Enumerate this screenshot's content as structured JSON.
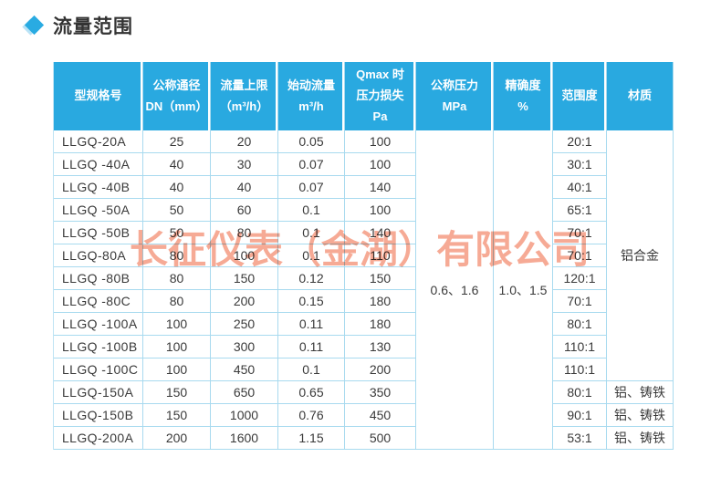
{
  "page_title": "流量范围",
  "watermark": {
    "text": "长征仪表（金湖）有限公司"
  },
  "colors": {
    "header_bg": "#29a9e0",
    "grid_line": "#a8daef",
    "watermark": "#f59b82",
    "accent_diamond": "#29abe2",
    "diamond_shadow": "#b9e3f6"
  },
  "table": {
    "headers": {
      "model": [
        "型规格号"
      ],
      "dn": [
        "公称通径",
        "DN（mm）"
      ],
      "flow_max": [
        "流量上限",
        "（m³/h）"
      ],
      "start_flow": [
        "始动流量",
        "m³/h"
      ],
      "pressure_loss": [
        "Qmax 时",
        "压力损失",
        "Pa"
      ],
      "pressure_rating": [
        "公称压力",
        "MPa"
      ],
      "accuracy": [
        "精确度",
        "%"
      ],
      "range_ratio": [
        "范围度"
      ],
      "material": [
        "材质"
      ]
    },
    "rows": [
      {
        "model": "LLGQ-20A",
        "dn": "25",
        "flow_max": "20",
        "start_flow": "0.05",
        "pressure_loss": "100",
        "range_ratio": "20:1"
      },
      {
        "model": "LLGQ -40A",
        "dn": "40",
        "flow_max": "30",
        "start_flow": "0.07",
        "pressure_loss": "100",
        "range_ratio": "30:1"
      },
      {
        "model": "LLGQ -40B",
        "dn": "40",
        "flow_max": "40",
        "start_flow": "0.07",
        "pressure_loss": "140",
        "range_ratio": "40:1"
      },
      {
        "model": "LLGQ -50A",
        "dn": "50",
        "flow_max": "60",
        "start_flow": "0.1",
        "pressure_loss": "100",
        "range_ratio": "65:1"
      },
      {
        "model": "LLGQ -50B",
        "dn": "50",
        "flow_max": "80",
        "start_flow": "0.1",
        "pressure_loss": "140",
        "range_ratio": "70:1"
      },
      {
        "model": "LLGQ-80A",
        "dn": "80",
        "flow_max": "100",
        "start_flow": "0.1",
        "pressure_loss": "110",
        "range_ratio": "70:1"
      },
      {
        "model": "LLGQ -80B",
        "dn": "80",
        "flow_max": "150",
        "start_flow": "0.12",
        "pressure_loss": "150",
        "range_ratio": "120:1"
      },
      {
        "model": "LLGQ -80C",
        "dn": "80",
        "flow_max": "200",
        "start_flow": "0.15",
        "pressure_loss": "180",
        "range_ratio": "70:1"
      },
      {
        "model": "LLGQ -100A",
        "dn": "100",
        "flow_max": "250",
        "start_flow": "0.11",
        "pressure_loss": "180",
        "range_ratio": "80:1"
      },
      {
        "model": "LLGQ -100B",
        "dn": "100",
        "flow_max": "300",
        "start_flow": "0.11",
        "pressure_loss": "130",
        "range_ratio": "110:1"
      },
      {
        "model": "LLGQ -100C",
        "dn": "100",
        "flow_max": "450",
        "start_flow": "0.1",
        "pressure_loss": "200",
        "range_ratio": "110:1"
      },
      {
        "model": "LLGQ-150A",
        "dn": "150",
        "flow_max": "650",
        "start_flow": "0.65",
        "pressure_loss": "350",
        "range_ratio": "80:1"
      },
      {
        "model": "LLGQ-150B",
        "dn": "150",
        "flow_max": "1000",
        "start_flow": "0.76",
        "pressure_loss": "450",
        "range_ratio": "90:1"
      },
      {
        "model": "LLGQ-200A",
        "dn": "200",
        "flow_max": "1600",
        "start_flow": "1.15",
        "pressure_loss": "500",
        "range_ratio": "53:1"
      }
    ],
    "merged": {
      "pressure_rating": "0.6、1.6",
      "accuracy": "1.0、1.5",
      "material_main": "铝合金",
      "material_last": [
        "铝、铸铁",
        "铝、铸铁",
        "铝、铸铁"
      ]
    }
  }
}
